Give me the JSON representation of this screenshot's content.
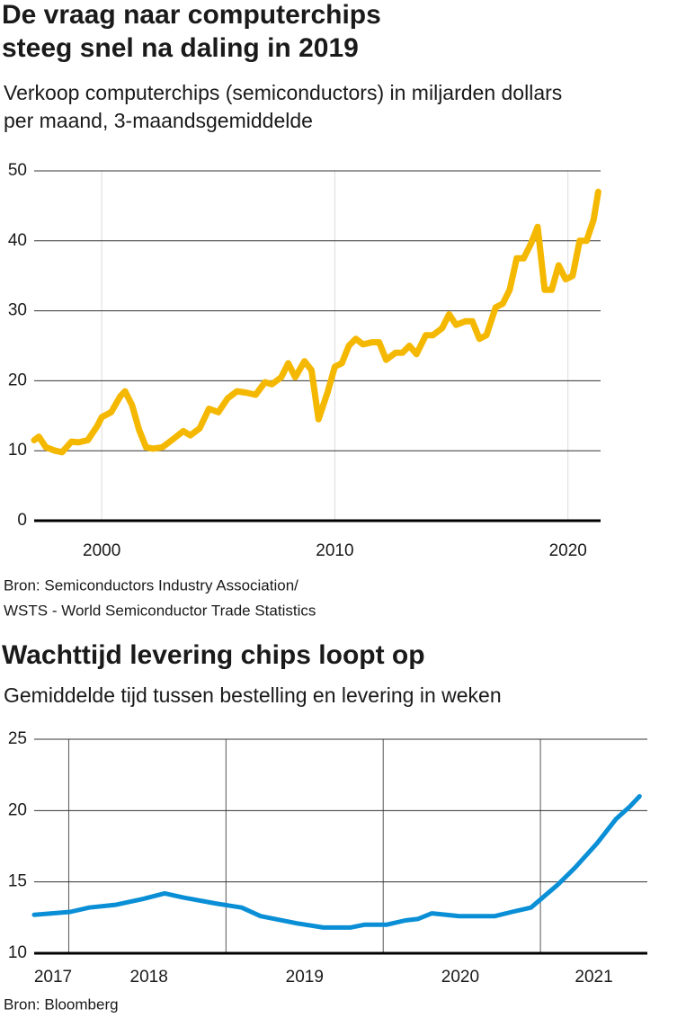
{
  "chart_data": [
    {
      "type": "line",
      "title": [
        "De vraag naar computerchips",
        "steeg snel na daling in 2019"
      ],
      "subtitle": [
        "Verkoop computerchips (semiconductors) in miljarden dollars",
        "per maand, 3-maandsgemiddelde"
      ],
      "source": [
        "Bron: Semiconductors Industry Association/",
        "WSTS - World Semiconductor Trade Statistics"
      ],
      "color": "#f5b800",
      "x": [
        1997.1,
        1997.3,
        1997.6,
        1998.0,
        1998.3,
        1998.7,
        1999.0,
        1999.4,
        1999.8,
        2000.0,
        2000.4,
        2000.8,
        2001.0,
        2001.3,
        2001.6,
        2001.9,
        2002.2,
        2002.6,
        2003.0,
        2003.5,
        2003.8,
        2004.2,
        2004.6,
        2005.0,
        2005.4,
        2005.8,
        2006.2,
        2006.6,
        2007.0,
        2007.3,
        2007.7,
        2008.0,
        2008.3,
        2008.7,
        2009.0,
        2009.3,
        2009.7,
        2010.0,
        2010.3,
        2010.6,
        2010.9,
        2011.2,
        2011.6,
        2011.9,
        2012.2,
        2012.6,
        2012.9,
        2013.2,
        2013.5,
        2013.9,
        2014.2,
        2014.6,
        2014.9,
        2015.2,
        2015.6,
        2015.9,
        2016.2,
        2016.5,
        2016.9,
        2017.2,
        2017.5,
        2017.8,
        2018.1,
        2018.4,
        2018.7,
        2019.0,
        2019.3,
        2019.6,
        2019.9,
        2020.2,
        2020.5,
        2020.8,
        2021.1,
        2021.3
      ],
      "values": [
        11.5,
        12,
        10.5,
        10,
        9.8,
        11.3,
        11.2,
        11.5,
        13.5,
        14.8,
        15.5,
        17.8,
        18.5,
        16.5,
        13,
        10.5,
        10.3,
        10.5,
        11.5,
        12.8,
        12.2,
        13.2,
        16,
        15.5,
        17.5,
        18.5,
        18.3,
        18,
        19.8,
        19.5,
        20.5,
        22.5,
        20.5,
        22.8,
        21.5,
        14.5,
        18.5,
        22,
        22.5,
        25,
        26,
        25.2,
        25.5,
        25.5,
        23,
        24,
        24,
        25,
        23.8,
        26.5,
        26.5,
        27.5,
        29.5,
        28,
        28.5,
        28.5,
        26,
        26.5,
        30.5,
        31,
        33,
        37.5,
        37.5,
        39.5,
        42,
        33,
        33,
        36.5,
        34.5,
        35,
        40,
        40,
        43,
        47
      ],
      "xlim": [
        1997.1,
        2021.4
      ],
      "xticks": [
        2000,
        2010,
        2020
      ],
      "ylim": [
        0,
        50
      ],
      "yticks": [
        0,
        10,
        20,
        30,
        40,
        50
      ],
      "grid": true
    },
    {
      "type": "line",
      "title": [
        "Wachttijd levering chips loopt op"
      ],
      "subtitle": [
        "Gemiddelde tijd tussen bestelling en levering in weken"
      ],
      "source": [
        "Bron: Bloomberg"
      ],
      "color": "#0a8fd6",
      "x": [
        2017.78,
        2018.01,
        2018.13,
        2018.3,
        2018.47,
        2018.61,
        2018.73,
        2018.93,
        2019.1,
        2019.22,
        2019.45,
        2019.62,
        2019.79,
        2019.88,
        2020.02,
        2020.14,
        2020.22,
        2020.31,
        2020.48,
        2020.57,
        2020.71,
        2020.82,
        2020.94,
        2021.11,
        2021.22,
        2021.36,
        2021.48,
        2021.57,
        2021.63
      ],
      "values": [
        12.7,
        12.9,
        13.2,
        13.4,
        13.8,
        14.2,
        13.9,
        13.5,
        13.2,
        12.6,
        12.1,
        11.8,
        11.8,
        12.0,
        12.0,
        12.3,
        12.4,
        12.8,
        12.6,
        12.6,
        12.6,
        12.9,
        13.2,
        14.8,
        16,
        17.7,
        19.4,
        20.3,
        21
      ],
      "xlim": [
        2017.78,
        2021.68
      ],
      "xticks": [
        {
          "value": 2017.9,
          "label": "2017"
        },
        {
          "value": 2018.51,
          "label": "2018"
        },
        {
          "value": 2019.5,
          "label": "2019"
        },
        {
          "value": 2020.49,
          "label": "2020"
        },
        {
          "value": 2021.34,
          "label": "2021"
        }
      ],
      "xgrid": [
        2018,
        2019,
        2020,
        2021
      ],
      "ylim": [
        10,
        25
      ],
      "yticks": [
        10,
        15,
        20,
        25
      ],
      "grid": true
    }
  ]
}
